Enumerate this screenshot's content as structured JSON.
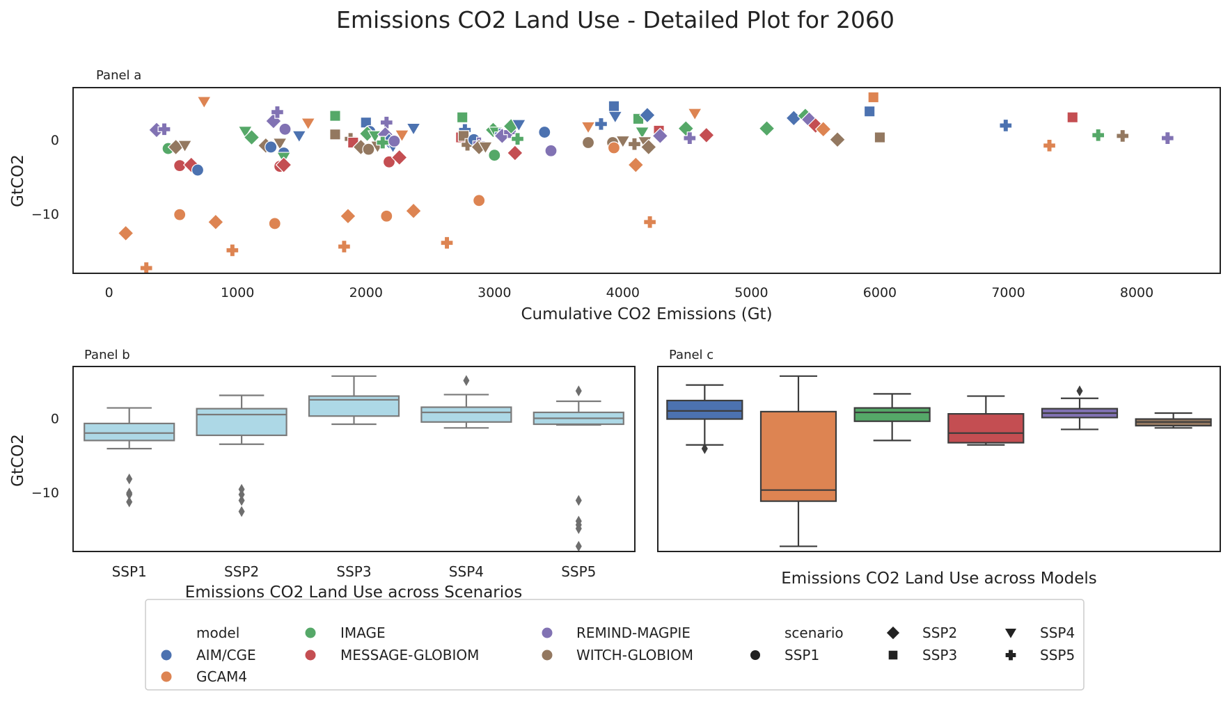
{
  "title": "Emissions CO2 Land Use - Detailed Plot for 2060",
  "colors": {
    "AIM/CGE": "#4c72b0",
    "GCAM4": "#dd8452",
    "IMAGE": "#55a868",
    "MESSAGE-GLOBIOM": "#c44e52",
    "REMIND-MAGPIE": "#8172b3",
    "WITCH-GLOBIOM": "#937860",
    "box_b_fill": "#add8e6",
    "box_b_line": "#7a7a7a",
    "box_c_line": "#3c3c3c"
  },
  "markers": {
    "SSP1": "circle",
    "SSP2": "diamond",
    "SSP3": "square",
    "SSP4": "triangle-down",
    "SSP5": "plus"
  },
  "panels": {
    "a": {
      "label": "Panel a",
      "xlabel": "Cumulative CO2 Emissions (Gt)",
      "ylabel": "GtCO2"
    },
    "b": {
      "label": "Panel b",
      "xlabel": "Emissions CO2 Land Use across Scenarios",
      "ylabel": "GtCO2"
    },
    "c": {
      "label": "Panel c",
      "xlabel": "Emissions CO2 Land Use across Models"
    }
  },
  "legend": {
    "model_title": "model",
    "scenario_title": "scenario",
    "models": [
      "AIM/CGE",
      "GCAM4",
      "IMAGE",
      "MESSAGE-GLOBIOM",
      "REMIND-MAGPIE",
      "WITCH-GLOBIOM"
    ],
    "scenarios": [
      "SSP1",
      "SSP2",
      "SSP3",
      "SSP4",
      "SSP5"
    ]
  },
  "chart_data": [
    {
      "type": "scatter",
      "xlim": [
        -280,
        8650
      ],
      "ylim": [
        -18,
        7
      ],
      "xticks": [
        0,
        1000,
        2000,
        3000,
        4000,
        5000,
        6000,
        7000,
        8000
      ],
      "yticks": [
        0,
        -10
      ],
      "grid": false,
      "points": [
        {
          "model": "GCAM4",
          "scenario": "SSP4",
          "x": 740,
          "y": 5.1
        },
        {
          "model": "GCAM4",
          "scenario": "SSP3",
          "x": 5950,
          "y": 5.7
        },
        {
          "model": "AIM/CGE",
          "scenario": "SSP3",
          "x": 3930,
          "y": 4.5
        },
        {
          "model": "AIM/CGE",
          "scenario": "SSP3",
          "x": 5920,
          "y": 3.8
        },
        {
          "model": "REMIND-MAGPIE",
          "scenario": "SSP2",
          "x": 370,
          "y": 1.3
        },
        {
          "model": "REMIND-MAGPIE",
          "scenario": "SSP5",
          "x": 430,
          "y": 1.4
        },
        {
          "model": "IMAGE",
          "scenario": "SSP1",
          "x": 460,
          "y": -1.2
        },
        {
          "model": "WITCH-GLOBIOM",
          "scenario": "SSP2",
          "x": 520,
          "y": -1.0
        },
        {
          "model": "WITCH-GLOBIOM",
          "scenario": "SSP4",
          "x": 590,
          "y": -0.8
        },
        {
          "model": "MESSAGE-GLOBIOM",
          "scenario": "SSP1",
          "x": 550,
          "y": -3.5
        },
        {
          "model": "MESSAGE-GLOBIOM",
          "scenario": "SSP2",
          "x": 640,
          "y": -3.4
        },
        {
          "model": "AIM/CGE",
          "scenario": "SSP1",
          "x": 690,
          "y": -4.1
        },
        {
          "model": "GCAM4",
          "scenario": "SSP2",
          "x": 130,
          "y": -12.6
        },
        {
          "model": "GCAM4",
          "scenario": "SSP5",
          "x": 290,
          "y": -17.3
        },
        {
          "model": "GCAM4",
          "scenario": "SSP1",
          "x": 550,
          "y": -10.1
        },
        {
          "model": "GCAM4",
          "scenario": "SSP2",
          "x": 830,
          "y": -11.1
        },
        {
          "model": "GCAM4",
          "scenario": "SSP5",
          "x": 960,
          "y": -14.9
        },
        {
          "model": "IMAGE",
          "scenario": "SSP4",
          "x": 1060,
          "y": 1.1
        },
        {
          "model": "IMAGE",
          "scenario": "SSP2",
          "x": 1110,
          "y": 0.3
        },
        {
          "model": "WITCH-GLOBIOM",
          "scenario": "SSP2",
          "x": 1220,
          "y": -0.8
        },
        {
          "model": "AIM/CGE",
          "scenario": "SSP1",
          "x": 1260,
          "y": -1.0
        },
        {
          "model": "REMIND-MAGPIE",
          "scenario": "SSP2",
          "x": 1280,
          "y": 2.5
        },
        {
          "model": "REMIND-MAGPIE",
          "scenario": "SSP5",
          "x": 1310,
          "y": 3.7
        },
        {
          "model": "WITCH-GLOBIOM",
          "scenario": "SSP4",
          "x": 1330,
          "y": -0.5
        },
        {
          "model": "REMIND-MAGPIE",
          "scenario": "SSP1",
          "x": 1370,
          "y": 1.4
        },
        {
          "model": "AIM/CGE",
          "scenario": "SSP1",
          "x": 1360,
          "y": -1.8
        },
        {
          "model": "IMAGE",
          "scenario": "SSP4",
          "x": 1360,
          "y": -2.4
        },
        {
          "model": "MESSAGE-GLOBIOM",
          "scenario": "SSP1",
          "x": 1330,
          "y": -3.6
        },
        {
          "model": "MESSAGE-GLOBIOM",
          "scenario": "SSP2",
          "x": 1360,
          "y": -3.4
        },
        {
          "model": "AIM/CGE",
          "scenario": "SSP4",
          "x": 1480,
          "y": 0.5
        },
        {
          "model": "GCAM4",
          "scenario": "SSP4",
          "x": 1550,
          "y": 2.2
        },
        {
          "model": "GCAM4",
          "scenario": "SSP1",
          "x": 1290,
          "y": -11.3
        },
        {
          "model": "IMAGE",
          "scenario": "SSP3",
          "x": 1760,
          "y": 3.2
        },
        {
          "model": "WITCH-GLOBIOM",
          "scenario": "SSP3",
          "x": 1760,
          "y": 0.7
        },
        {
          "model": "WITCH-GLOBIOM",
          "scenario": "SSP5",
          "x": 1880,
          "y": 0.1
        },
        {
          "model": "MESSAGE-GLOBIOM",
          "scenario": "SSP3",
          "x": 1900,
          "y": -0.4
        },
        {
          "model": "AIM/CGE",
          "scenario": "SSP3",
          "x": 2000,
          "y": 2.3
        },
        {
          "model": "AIM/CGE",
          "scenario": "SSP1",
          "x": 2030,
          "y": 1.1
        },
        {
          "model": "IMAGE",
          "scenario": "SSP2",
          "x": 2010,
          "y": 0.8
        },
        {
          "model": "IMAGE",
          "scenario": "SSP4",
          "x": 2070,
          "y": 0.5
        },
        {
          "model": "WITCH-GLOBIOM",
          "scenario": "SSP2",
          "x": 1960,
          "y": -1.0
        },
        {
          "model": "WITCH-GLOBIOM",
          "scenario": "SSP1",
          "x": 2020,
          "y": -1.3
        },
        {
          "model": "WITCH-GLOBIOM",
          "scenario": "SSP4",
          "x": 2090,
          "y": -0.9
        },
        {
          "model": "REMIND-MAGPIE",
          "scenario": "SSP5",
          "x": 2160,
          "y": 2.3
        },
        {
          "model": "REMIND-MAGPIE",
          "scenario": "SSP2",
          "x": 2150,
          "y": 0.7
        },
        {
          "model": "AIM/CGE",
          "scenario": "SSP2",
          "x": 2180,
          "y": -0.2
        },
        {
          "model": "AIM/CGE",
          "scenario": "SSP4",
          "x": 2210,
          "y": -0.9
        },
        {
          "model": "IMAGE",
          "scenario": "SSP5",
          "x": 2130,
          "y": -0.4
        },
        {
          "model": "REMIND-MAGPIE",
          "scenario": "SSP1",
          "x": 2220,
          "y": -0.2
        },
        {
          "model": "GCAM4",
          "scenario": "SSP4",
          "x": 2280,
          "y": 0.6
        },
        {
          "model": "MESSAGE-GLOBIOM",
          "scenario": "SSP1",
          "x": 2180,
          "y": -3.0
        },
        {
          "model": "MESSAGE-GLOBIOM",
          "scenario": "SSP2",
          "x": 2260,
          "y": -2.4
        },
        {
          "model": "AIM/CGE",
          "scenario": "SSP4",
          "x": 2370,
          "y": 1.5
        },
        {
          "model": "GCAM4",
          "scenario": "SSP5",
          "x": 1830,
          "y": -14.4
        },
        {
          "model": "GCAM4",
          "scenario": "SSP2",
          "x": 1860,
          "y": -10.3
        },
        {
          "model": "GCAM4",
          "scenario": "SSP1",
          "x": 2160,
          "y": -10.3
        },
        {
          "model": "GCAM4",
          "scenario": "SSP2",
          "x": 2370,
          "y": -9.6
        },
        {
          "model": "GCAM4",
          "scenario": "SSP5",
          "x": 2630,
          "y": -13.9
        },
        {
          "model": "IMAGE",
          "scenario": "SSP3",
          "x": 2750,
          "y": 3.0
        },
        {
          "model": "AIM/CGE",
          "scenario": "SSP5",
          "x": 2770,
          "y": 1.3
        },
        {
          "model": "MESSAGE-GLOBIOM",
          "scenario": "SSP3",
          "x": 2740,
          "y": 0.3
        },
        {
          "model": "WITCH-GLOBIOM",
          "scenario": "SSP3",
          "x": 2760,
          "y": 0.5
        },
        {
          "model": "WITCH-GLOBIOM",
          "scenario": "SSP5",
          "x": 2790,
          "y": -0.7
        },
        {
          "model": "AIM/CGE",
          "scenario": "SSP1",
          "x": 2840,
          "y": 0.0
        },
        {
          "model": "REMIND-MAGPIE",
          "scenario": "SSP5",
          "x": 2880,
          "y": -0.5
        },
        {
          "model": "WITCH-GLOBIOM",
          "scenario": "SSP2",
          "x": 2880,
          "y": -1.0
        },
        {
          "model": "WITCH-GLOBIOM",
          "scenario": "SSP4",
          "x": 2930,
          "y": -1.0
        },
        {
          "model": "IMAGE",
          "scenario": "SSP2",
          "x": 2990,
          "y": 1.3
        },
        {
          "model": "IMAGE",
          "scenario": "SSP4",
          "x": 3010,
          "y": 1.0
        },
        {
          "model": "AIM/CGE",
          "scenario": "SSP5",
          "x": 3050,
          "y": 0.7
        },
        {
          "model": "REMIND-MAGPIE",
          "scenario": "SSP2",
          "x": 3060,
          "y": 0.5
        },
        {
          "model": "REMIND-MAGPIE",
          "scenario": "SSP5",
          "x": 3120,
          "y": 1.0
        },
        {
          "model": "IMAGE",
          "scenario": "SSP2",
          "x": 3130,
          "y": 1.8
        },
        {
          "model": "AIM/CGE",
          "scenario": "SSP4",
          "x": 3190,
          "y": 2.0
        },
        {
          "model": "IMAGE",
          "scenario": "SSP5",
          "x": 3180,
          "y": 0.1
        },
        {
          "model": "IMAGE",
          "scenario": "SSP1",
          "x": 3000,
          "y": -2.1
        },
        {
          "model": "MESSAGE-GLOBIOM",
          "scenario": "SSP2",
          "x": 3160,
          "y": -1.8
        },
        {
          "model": "GCAM4",
          "scenario": "SSP1",
          "x": 2880,
          "y": -8.2
        },
        {
          "model": "AIM/CGE",
          "scenario": "SSP1",
          "x": 3390,
          "y": 1.0
        },
        {
          "model": "REMIND-MAGPIE",
          "scenario": "SSP1",
          "x": 3440,
          "y": -1.5
        },
        {
          "model": "GCAM4",
          "scenario": "SSP4",
          "x": 3730,
          "y": 1.7
        },
        {
          "model": "WITCH-GLOBIOM",
          "scenario": "SSP1",
          "x": 3730,
          "y": -0.4
        },
        {
          "model": "AIM/CGE",
          "scenario": "SSP5",
          "x": 3830,
          "y": 2.1
        },
        {
          "model": "AIM/CGE",
          "scenario": "SSP4",
          "x": 3940,
          "y": 3.1
        },
        {
          "model": "WITCH-GLOBIOM",
          "scenario": "SSP1",
          "x": 3920,
          "y": -0.4
        },
        {
          "model": "GCAM4",
          "scenario": "SSP1",
          "x": 3930,
          "y": -1.1
        },
        {
          "model": "WITCH-GLOBIOM",
          "scenario": "SSP4",
          "x": 4000,
          "y": -0.2
        },
        {
          "model": "WITCH-GLOBIOM",
          "scenario": "SSP5",
          "x": 4090,
          "y": -0.6
        },
        {
          "model": "GCAM4",
          "scenario": "SSP2",
          "x": 4100,
          "y": -3.4
        },
        {
          "model": "IMAGE",
          "scenario": "SSP3",
          "x": 4120,
          "y": 2.8
        },
        {
          "model": "AIM/CGE",
          "scenario": "SSP2",
          "x": 4190,
          "y": 3.3
        },
        {
          "model": "IMAGE",
          "scenario": "SSP4",
          "x": 4150,
          "y": 1.0
        },
        {
          "model": "WITCH-GLOBIOM",
          "scenario": "SSP4",
          "x": 4170,
          "y": -0.3
        },
        {
          "model": "WITCH-GLOBIOM",
          "scenario": "SSP2",
          "x": 4200,
          "y": -1.0
        },
        {
          "model": "MESSAGE-GLOBIOM",
          "scenario": "SSP3",
          "x": 4280,
          "y": 1.2
        },
        {
          "model": "REMIND-MAGPIE",
          "scenario": "SSP2",
          "x": 4290,
          "y": 0.5
        },
        {
          "model": "GCAM4",
          "scenario": "SSP5",
          "x": 4210,
          "y": -11.1
        },
        {
          "model": "IMAGE",
          "scenario": "SSP2",
          "x": 4490,
          "y": 1.5
        },
        {
          "model": "REMIND-MAGPIE",
          "scenario": "SSP5",
          "x": 4520,
          "y": 0.2
        },
        {
          "model": "GCAM4",
          "scenario": "SSP4",
          "x": 4560,
          "y": 3.5
        },
        {
          "model": "MESSAGE-GLOBIOM",
          "scenario": "SSP2",
          "x": 4650,
          "y": 0.6
        },
        {
          "model": "IMAGE",
          "scenario": "SSP2",
          "x": 5120,
          "y": 1.5
        },
        {
          "model": "AIM/CGE",
          "scenario": "SSP2",
          "x": 5330,
          "y": 2.9
        },
        {
          "model": "IMAGE",
          "scenario": "SSP2",
          "x": 5420,
          "y": 3.2
        },
        {
          "model": "REMIND-MAGPIE",
          "scenario": "SSP2",
          "x": 5450,
          "y": 2.7
        },
        {
          "model": "MESSAGE-GLOBIOM",
          "scenario": "SSP2",
          "x": 5500,
          "y": 1.9
        },
        {
          "model": "GCAM4",
          "scenario": "SSP2",
          "x": 5560,
          "y": 1.4
        },
        {
          "model": "WITCH-GLOBIOM",
          "scenario": "SSP2",
          "x": 5670,
          "y": 0.0
        },
        {
          "model": "WITCH-GLOBIOM",
          "scenario": "SSP3",
          "x": 6000,
          "y": 0.3
        },
        {
          "model": "AIM/CGE",
          "scenario": "SSP5",
          "x": 6980,
          "y": 1.9
        },
        {
          "model": "GCAM4",
          "scenario": "SSP5",
          "x": 7320,
          "y": -0.8
        },
        {
          "model": "MESSAGE-GLOBIOM",
          "scenario": "SSP3",
          "x": 7500,
          "y": 3.0
        },
        {
          "model": "IMAGE",
          "scenario": "SSP5",
          "x": 7700,
          "y": 0.6
        },
        {
          "model": "WITCH-GLOBIOM",
          "scenario": "SSP5",
          "x": 7890,
          "y": 0.5
        },
        {
          "model": "REMIND-MAGPIE",
          "scenario": "SSP5",
          "x": 8240,
          "y": 0.2
        }
      ]
    },
    {
      "type": "box",
      "categories": [
        "SSP1",
        "SSP2",
        "SSP3",
        "SSP4",
        "SSP5"
      ],
      "ylim": [
        -18,
        7
      ],
      "yticks": [
        0,
        -10
      ],
      "boxes": [
        {
          "category": "SSP1",
          "whisker_low": -4.1,
          "q1": -3.0,
          "median": -2.0,
          "q3": -0.7,
          "whisker_high": 1.4,
          "outliers": [
            -8.2,
            -10.1,
            -10.3,
            -11.3
          ]
        },
        {
          "category": "SSP2",
          "whisker_low": -3.5,
          "q1": -2.3,
          "median": 0.5,
          "q3": 1.3,
          "whisker_high": 3.1,
          "outliers": [
            -9.6,
            -10.3,
            -11.1,
            -12.6
          ]
        },
        {
          "category": "SSP3",
          "whisker_low": -0.8,
          "q1": 0.3,
          "median": 2.5,
          "q3": 3.0,
          "whisker_high": 5.7,
          "outliers": []
        },
        {
          "category": "SSP4",
          "whisker_low": -1.3,
          "q1": -0.5,
          "median": 0.8,
          "q3": 1.5,
          "whisker_high": 3.2,
          "outliers": [
            5.1
          ]
        },
        {
          "category": "SSP5",
          "whisker_low": -0.9,
          "q1": -0.8,
          "median": 0.0,
          "q3": 0.8,
          "whisker_high": 2.3,
          "outliers": [
            3.7,
            -11.1,
            -13.9,
            -14.4,
            -14.9,
            -17.3
          ]
        }
      ]
    },
    {
      "type": "box",
      "categories": [
        "AIM/CGE",
        "GCAM4",
        "IMAGE",
        "MESSAGE-GLOBIOM",
        "REMIND-MAGPIE",
        "WITCH-GLOBIOM"
      ],
      "ylim": [
        -18,
        7
      ],
      "boxes": [
        {
          "category": "AIM/CGE",
          "whisker_low": -3.6,
          "q1": -0.1,
          "median": 1.0,
          "q3": 2.4,
          "whisker_high": 4.5,
          "outliers": [
            -4.1
          ]
        },
        {
          "category": "GCAM4",
          "whisker_low": -17.3,
          "q1": -11.2,
          "median": -9.7,
          "q3": 0.9,
          "whisker_high": 5.7,
          "outliers": []
        },
        {
          "category": "IMAGE",
          "whisker_low": -3.0,
          "q1": -0.4,
          "median": 0.8,
          "q3": 1.4,
          "whisker_high": 3.3,
          "outliers": []
        },
        {
          "category": "MESSAGE-GLOBIOM",
          "whisker_low": -3.6,
          "q1": -3.3,
          "median": -2.0,
          "q3": 0.6,
          "whisker_high": 3.0,
          "outliers": []
        },
        {
          "category": "REMIND-MAGPIE",
          "whisker_low": -1.5,
          "q1": 0.1,
          "median": 0.7,
          "q3": 1.3,
          "whisker_high": 2.7,
          "outliers": [
            3.7
          ]
        },
        {
          "category": "WITCH-GLOBIOM",
          "whisker_low": -1.3,
          "q1": -1.0,
          "median": -0.5,
          "q3": -0.1,
          "whisker_high": 0.7,
          "outliers": []
        }
      ]
    }
  ]
}
